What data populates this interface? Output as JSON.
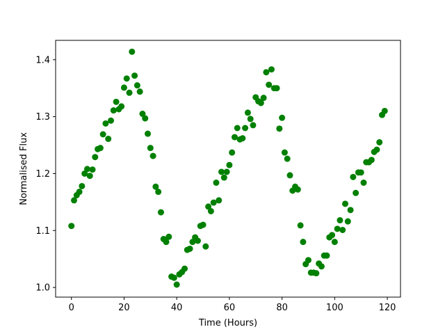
{
  "chart_data": {
    "type": "scatter",
    "title": "",
    "xlabel": "Time (Hours)",
    "ylabel": "Normalised Flux",
    "xlim": [
      -6.0,
      125.0
    ],
    "ylim": [
      0.983,
      1.434
    ],
    "xticks": [
      0,
      20,
      40,
      60,
      80,
      100,
      120
    ],
    "yticks": [
      1.0,
      1.1,
      1.2,
      1.3,
      1.4
    ],
    "xtick_labels": [
      "0",
      "20",
      "40",
      "60",
      "80",
      "100",
      "120"
    ],
    "ytick_labels": [
      "1.0",
      "1.1",
      "1.2",
      "1.3",
      "1.4"
    ],
    "grid": false,
    "marker_color": "#008000",
    "series": [
      {
        "x": [
          0.0,
          1.0,
          2.0,
          3.0,
          4.0,
          5.0,
          6.0,
          7.0,
          8.0,
          9.0,
          10.0,
          11.0,
          12.0,
          13.0,
          14.0,
          15.0,
          16.0,
          17.0,
          18.0,
          19.0,
          20.0,
          21.0,
          22.0,
          23.0,
          24.0,
          25.0,
          26.0,
          27.0,
          28.0,
          29.0,
          30.0,
          31.0,
          32.0,
          33.0,
          34.0,
          35.0,
          36.0,
          37.0,
          38.0,
          39.0,
          40.0,
          41.0,
          42.0,
          43.0,
          44.0,
          45.0,
          46.0,
          47.0,
          48.0,
          49.0,
          50.0,
          51.0,
          52.0,
          53.0,
          54.0,
          55.0,
          56.0,
          57.0,
          58.0,
          59.0,
          60.0,
          61.0,
          62.0,
          63.0,
          64.0,
          65.0,
          66.0,
          67.0,
          68.0,
          69.0,
          70.0,
          71.0,
          72.0,
          73.0,
          74.0,
          75.0,
          76.0,
          77.0,
          78.0,
          79.0,
          80.0,
          81.0,
          82.0,
          83.0,
          84.0,
          85.0,
          86.0,
          87.0,
          88.0,
          89.0,
          90.0,
          91.0,
          92.0,
          93.0,
          94.0,
          95.0,
          96.0,
          97.0,
          98.0,
          99.0,
          100.0,
          101.0,
          102.0,
          103.0,
          104.0,
          105.0,
          106.0,
          107.0,
          108.0,
          109.0,
          110.0,
          111.0,
          112.0,
          113.0,
          114.0,
          115.0,
          116.0,
          117.0,
          118.0,
          119.0
        ],
        "y": [
          1.108,
          1.153,
          1.162,
          1.168,
          1.178,
          1.2,
          1.208,
          1.196,
          1.207,
          1.229,
          1.243,
          1.245,
          1.269,
          1.288,
          1.261,
          1.293,
          1.311,
          1.326,
          1.313,
          1.318,
          1.351,
          1.367,
          1.342,
          1.414,
          1.372,
          1.355,
          1.344,
          1.305,
          1.297,
          1.27,
          1.245,
          1.231,
          1.177,
          1.168,
          1.132,
          1.085,
          1.08,
          1.089,
          1.019,
          1.017,
          1.005,
          1.023,
          1.027,
          1.033,
          1.066,
          1.068,
          1.08,
          1.088,
          1.082,
          1.108,
          1.11,
          1.072,
          1.142,
          1.134,
          1.149,
          1.184,
          1.153,
          1.203,
          1.193,
          1.203,
          1.215,
          1.237,
          1.264,
          1.28,
          1.26,
          1.262,
          1.28,
          1.307,
          1.296,
          1.285,
          1.334,
          1.327,
          1.324,
          1.333,
          1.378,
          1.356,
          1.383,
          1.35,
          1.35,
          1.279,
          1.298,
          1.237,
          1.226,
          1.197,
          1.17,
          1.177,
          1.172,
          1.109,
          1.08,
          1.041,
          1.048,
          1.026,
          1.026,
          1.025,
          1.042,
          1.037,
          1.056,
          1.056,
          1.088,
          1.092,
          1.08,
          1.103,
          1.118,
          1.101,
          1.147,
          1.116,
          1.136,
          1.194,
          1.166,
          1.202,
          1.202,
          1.184,
          1.22,
          1.22,
          1.224,
          1.238,
          1.242,
          1.255,
          1.303,
          1.31
        ]
      }
    ]
  }
}
